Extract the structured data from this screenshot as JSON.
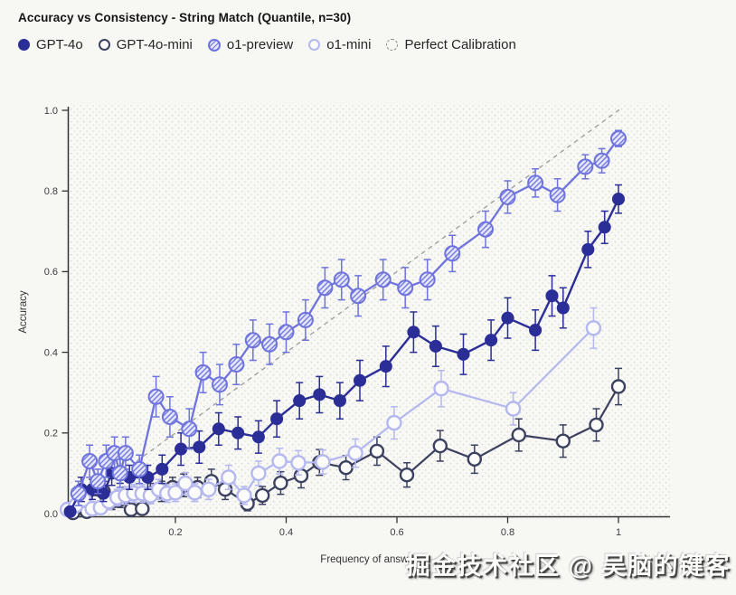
{
  "watermark": "掘金技术社区 @ 吴脑的键客",
  "colors": {
    "page_background": "#f7f7f4",
    "plot_background": "#f8f8f5",
    "plot_dot": "#d9d9d5",
    "axis": "#333333"
  },
  "chart_data": {
    "type": "line",
    "title": "Accuracy vs Consistency - String Match (Quantile, n=30)",
    "xlabel": "Frequency of answer",
    "ylabel": "Accuracy",
    "xlim": [
      0,
      1.09
    ],
    "ylim": [
      0,
      1.0
    ],
    "x_ticks": [
      0.2,
      0.4,
      0.6,
      0.8,
      1
    ],
    "x_tick_labels": [
      "0.2",
      "0.4",
      "0.6",
      "0.8",
      "1"
    ],
    "y_ticks": [
      0.0,
      0.2,
      0.4,
      0.6,
      0.8,
      1.0
    ],
    "y_tick_labels": [
      "0.0",
      "0.2",
      "0.4",
      "0.6",
      "0.8",
      "1.0"
    ],
    "grid": "dotted-background",
    "legend_position": "top",
    "error_bars": true,
    "series": [
      {
        "name": "GPT-4o",
        "marker": "filled-circle",
        "color": "#2b2e96",
        "radius": 6.3,
        "line_width": 2.4,
        "z": 3,
        "points": [
          [
            0.01,
            0.005,
            0.01
          ],
          [
            0.03,
            0.06,
            0.03
          ],
          [
            0.05,
            0.06,
            0.025
          ],
          [
            0.07,
            0.05,
            0.02
          ],
          [
            0.085,
            0.1,
            0.03
          ],
          [
            0.1,
            0.105,
            0.03
          ],
          [
            0.117,
            0.09,
            0.03
          ],
          [
            0.15,
            0.09,
            0.03
          ],
          [
            0.176,
            0.11,
            0.035
          ],
          [
            0.21,
            0.16,
            0.04
          ],
          [
            0.243,
            0.165,
            0.04
          ],
          [
            0.278,
            0.21,
            0.04
          ],
          [
            0.313,
            0.2,
            0.04
          ],
          [
            0.35,
            0.19,
            0.04
          ],
          [
            0.383,
            0.235,
            0.045
          ],
          [
            0.424,
            0.28,
            0.045
          ],
          [
            0.46,
            0.295,
            0.045
          ],
          [
            0.497,
            0.28,
            0.045
          ],
          [
            0.533,
            0.33,
            0.05
          ],
          [
            0.58,
            0.365,
            0.05
          ],
          [
            0.63,
            0.45,
            0.05
          ],
          [
            0.67,
            0.415,
            0.05
          ],
          [
            0.72,
            0.395,
            0.05
          ],
          [
            0.77,
            0.43,
            0.05
          ],
          [
            0.8,
            0.485,
            0.05
          ],
          [
            0.85,
            0.455,
            0.05
          ],
          [
            0.88,
            0.54,
            0.05
          ],
          [
            0.9,
            0.51,
            0.05
          ],
          [
            0.945,
            0.655,
            0.045
          ],
          [
            0.975,
            0.71,
            0.04
          ],
          [
            1.0,
            0.78,
            0.035
          ]
        ]
      },
      {
        "name": "GPT-4o-mini",
        "marker": "open-circle",
        "color": "#3c4160",
        "radius": 7,
        "line_width": 2.2,
        "z": 1,
        "points": [
          [
            0.015,
            0.002,
            0.008
          ],
          [
            0.04,
            0.005,
            0.01
          ],
          [
            0.055,
            0.03,
            0.02
          ],
          [
            0.07,
            0.055,
            0.025
          ],
          [
            0.085,
            0.03,
            0.02
          ],
          [
            0.1,
            0.035,
            0.02
          ],
          [
            0.12,
            0.01,
            0.01
          ],
          [
            0.14,
            0.012,
            0.012
          ],
          [
            0.155,
            0.05,
            0.025
          ],
          [
            0.175,
            0.055,
            0.025
          ],
          [
            0.195,
            0.065,
            0.025
          ],
          [
            0.215,
            0.07,
            0.028
          ],
          [
            0.24,
            0.065,
            0.025
          ],
          [
            0.265,
            0.08,
            0.03
          ],
          [
            0.29,
            0.06,
            0.025
          ],
          [
            0.33,
            0.025,
            0.018
          ],
          [
            0.357,
            0.045,
            0.022
          ],
          [
            0.39,
            0.076,
            0.028
          ],
          [
            0.427,
            0.094,
            0.03
          ],
          [
            0.46,
            0.127,
            0.032
          ],
          [
            0.508,
            0.114,
            0.03
          ],
          [
            0.564,
            0.155,
            0.035
          ],
          [
            0.618,
            0.096,
            0.03
          ],
          [
            0.678,
            0.168,
            0.038
          ],
          [
            0.74,
            0.135,
            0.035
          ],
          [
            0.82,
            0.195,
            0.04
          ],
          [
            0.9,
            0.18,
            0.04
          ],
          [
            0.96,
            0.22,
            0.04
          ],
          [
            1.0,
            0.315,
            0.045
          ]
        ]
      },
      {
        "name": "o1-preview",
        "marker": "hatched-circle",
        "color": "#6f74dc",
        "radius": 8,
        "line_width": 2.3,
        "z": 4,
        "points": [
          [
            0.025,
            0.05,
            0.03
          ],
          [
            0.045,
            0.13,
            0.04
          ],
          [
            0.06,
            0.08,
            0.03
          ],
          [
            0.075,
            0.13,
            0.04
          ],
          [
            0.09,
            0.15,
            0.04
          ],
          [
            0.1,
            0.1,
            0.035
          ],
          [
            0.11,
            0.15,
            0.04
          ],
          [
            0.135,
            0.11,
            0.035
          ],
          [
            0.165,
            0.29,
            0.05
          ],
          [
            0.19,
            0.24,
            0.05
          ],
          [
            0.225,
            0.21,
            0.05
          ],
          [
            0.25,
            0.35,
            0.05
          ],
          [
            0.28,
            0.32,
            0.05
          ],
          [
            0.31,
            0.37,
            0.05
          ],
          [
            0.34,
            0.43,
            0.05
          ],
          [
            0.37,
            0.42,
            0.05
          ],
          [
            0.4,
            0.45,
            0.05
          ],
          [
            0.435,
            0.48,
            0.05
          ],
          [
            0.47,
            0.56,
            0.05
          ],
          [
            0.5,
            0.58,
            0.05
          ],
          [
            0.53,
            0.54,
            0.05
          ],
          [
            0.575,
            0.58,
            0.05
          ],
          [
            0.615,
            0.56,
            0.05
          ],
          [
            0.655,
            0.58,
            0.05
          ],
          [
            0.7,
            0.645,
            0.045
          ],
          [
            0.76,
            0.705,
            0.045
          ],
          [
            0.8,
            0.785,
            0.04
          ],
          [
            0.85,
            0.82,
            0.035
          ],
          [
            0.89,
            0.79,
            0.04
          ],
          [
            0.94,
            0.86,
            0.03
          ],
          [
            0.97,
            0.875,
            0.03
          ],
          [
            1.0,
            0.93,
            0.02
          ]
        ]
      },
      {
        "name": "o1-mini",
        "marker": "open-circle",
        "color": "#b5b8ef",
        "radius": 7.5,
        "line_width": 2.2,
        "z": 2,
        "points": [
          [
            0.005,
            0.01,
            0.012
          ],
          [
            0.02,
            0.02,
            0.015
          ],
          [
            0.035,
            0.035,
            0.02
          ],
          [
            0.05,
            0.012,
            0.012
          ],
          [
            0.065,
            0.015,
            0.015
          ],
          [
            0.08,
            0.03,
            0.02
          ],
          [
            0.095,
            0.04,
            0.02
          ],
          [
            0.11,
            0.045,
            0.022
          ],
          [
            0.125,
            0.05,
            0.022
          ],
          [
            0.14,
            0.05,
            0.022
          ],
          [
            0.155,
            0.045,
            0.02
          ],
          [
            0.17,
            0.06,
            0.025
          ],
          [
            0.185,
            0.05,
            0.022
          ],
          [
            0.2,
            0.052,
            0.022
          ],
          [
            0.218,
            0.075,
            0.027
          ],
          [
            0.235,
            0.052,
            0.022
          ],
          [
            0.26,
            0.06,
            0.025
          ],
          [
            0.296,
            0.09,
            0.03
          ],
          [
            0.324,
            0.045,
            0.022
          ],
          [
            0.35,
            0.1,
            0.03
          ],
          [
            0.388,
            0.13,
            0.032
          ],
          [
            0.422,
            0.126,
            0.03
          ],
          [
            0.466,
            0.128,
            0.03
          ],
          [
            0.525,
            0.15,
            0.035
          ],
          [
            0.595,
            0.225,
            0.04
          ],
          [
            0.68,
            0.31,
            0.045
          ],
          [
            0.81,
            0.26,
            0.04
          ],
          [
            0.955,
            0.46,
            0.05
          ]
        ]
      },
      {
        "name": "Perfect Calibration",
        "marker": "dashed-line",
        "color": "#9b9b99",
        "line_width": 1.3,
        "z": 0,
        "points": [
          [
            0.13,
            0.13,
            0
          ],
          [
            1.005,
            1.005,
            0
          ]
        ]
      }
    ]
  }
}
